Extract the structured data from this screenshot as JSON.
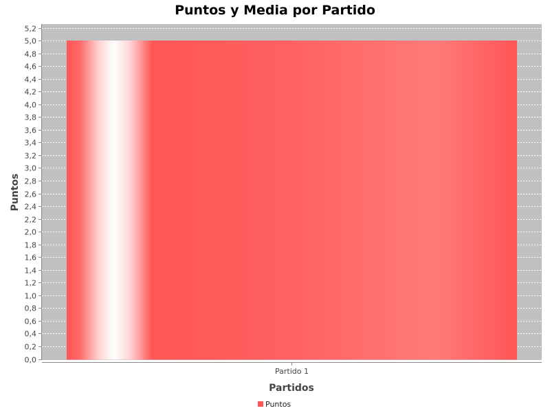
{
  "chart_data": {
    "type": "bar",
    "title": "Puntos y Media por Partido",
    "xlabel": "Partidos",
    "ylabel": "Puntos",
    "categories": [
      "Partido 1"
    ],
    "series": [
      {
        "name": "Puntos",
        "values": [
          5.0
        ],
        "color": "#ff5555"
      }
    ],
    "ylim": [
      0,
      5.2
    ],
    "ytick_step": 0.2,
    "decimal_separator": ",",
    "grid": true,
    "plot_background": "#c0c0c0",
    "legend_position": "bottom-center"
  }
}
